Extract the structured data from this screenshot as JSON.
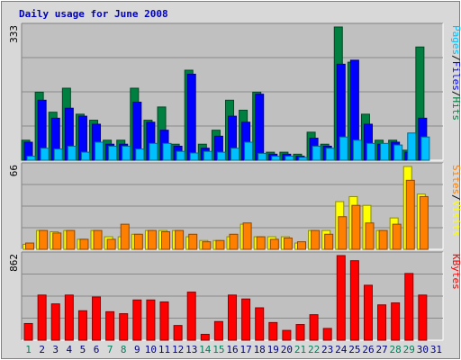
{
  "chart_data": {
    "type": "bar",
    "title": "Daily usage for June 2008",
    "colors": {
      "frame": "#d8d8d8",
      "plot_bg": "#c0c0c0",
      "title": "#0000c0",
      "hits": "#008040",
      "files": "#0000ff",
      "pages": "#00c0ff",
      "visits": "#ffff00",
      "sites": "#ff8000",
      "kbytes": "#ff0000",
      "weekend_label": "#00805c",
      "weekday_label": "#000080"
    },
    "categories": [
      "1",
      "2",
      "3",
      "4",
      "5",
      "6",
      "7",
      "8",
      "9",
      "10",
      "11",
      "12",
      "13",
      "14",
      "15",
      "16",
      "17",
      "18",
      "19",
      "20",
      "21",
      "22",
      "23",
      "24",
      "25",
      "26",
      "27",
      "28",
      "29",
      "30",
      "31"
    ],
    "weekend_days": [
      "1",
      "7",
      "8",
      "14",
      "15",
      "21",
      "22",
      "28",
      "29"
    ],
    "panels": [
      {
        "id": "top",
        "max_label": "333",
        "ylim": [
          0,
          333
        ],
        "legend": [
          {
            "text": "Pages",
            "color": "#00c0ff"
          },
          {
            "text": "/",
            "color": "#000000"
          },
          {
            "text": "Files",
            "color": "#0000ff"
          },
          {
            "text": "/",
            "color": "#000000"
          },
          {
            "text": "Hits",
            "color": "#008040"
          }
        ],
        "series": [
          {
            "name": "Hits",
            "color": "#008040",
            "values": [
              50,
              170,
              120,
              180,
              115,
              100,
              50,
              50,
              180,
              100,
              133,
              40,
              225,
              40,
              75,
              150,
              125,
              170,
              20,
              20,
              15,
              70,
              40,
              333,
              245,
              115,
              50,
              50,
              25,
              283,
              0
            ]
          },
          {
            "name": "Files",
            "color": "#0000ff",
            "values": [
              45,
              150,
              105,
              130,
              110,
              90,
              40,
              40,
              145,
              95,
              75,
              35,
              215,
              30,
              60,
              110,
              95,
              165,
              15,
              15,
              10,
              55,
              35,
              240,
              250,
              90,
              40,
              45,
              20,
              105,
              0
            ]
          },
          {
            "name": "Pages",
            "color": "#00c0ff",
            "values": [
              10,
              30,
              28,
              35,
              20,
              45,
              35,
              35,
              28,
              42,
              42,
              22,
              18,
              22,
              20,
              30,
              45,
              17,
              10,
              10,
              7,
              35,
              30,
              58,
              50,
              42,
              42,
              38,
              68,
              58,
              0
            ]
          }
        ]
      },
      {
        "id": "middle",
        "max_label": "66",
        "ylim": [
          0,
          66
        ],
        "legend": [
          {
            "text": "Sites",
            "color": "#ff8000"
          },
          {
            "text": "/",
            "color": "#000000"
          },
          {
            "text": "Visits",
            "color": "#ffff00"
          }
        ],
        "series": [
          {
            "name": "Visits",
            "color": "#ffff00",
            "values": [
              4,
              15,
              14,
              15,
              8,
              15,
              10,
              10,
              12,
              15,
              15,
              15,
              10,
              7,
              7,
              10,
              20,
              10,
              10,
              10,
              5,
              15,
              15,
              38,
              42,
              35,
              15,
              25,
              66,
              44,
              0
            ]
          },
          {
            "name": "Sites",
            "color": "#ff8000",
            "values": [
              5,
              15,
              13,
              15,
              8,
              15,
              8,
              20,
              12,
              15,
              14,
              15,
              12,
              6,
              7,
              12,
              21,
              10,
              8,
              9,
              6,
              15,
              12,
              26,
              35,
              21,
              15,
              20,
              55,
              42,
              0
            ]
          }
        ]
      },
      {
        "id": "bottom",
        "max_label": "862",
        "ylim": [
          0,
          862
        ],
        "legend": [
          {
            "text": "KBytes",
            "color": "#ff0000"
          }
        ],
        "series": [
          {
            "name": "KBytes",
            "color": "#ff0000",
            "values": [
              170,
              460,
              370,
              460,
              300,
              440,
              290,
              270,
              410,
              410,
              390,
              150,
              490,
              60,
              190,
              460,
              420,
              330,
              180,
              100,
              160,
              260,
              120,
              862,
              810,
              560,
              360,
              380,
              680,
              460,
              0
            ]
          }
        ]
      }
    ]
  }
}
